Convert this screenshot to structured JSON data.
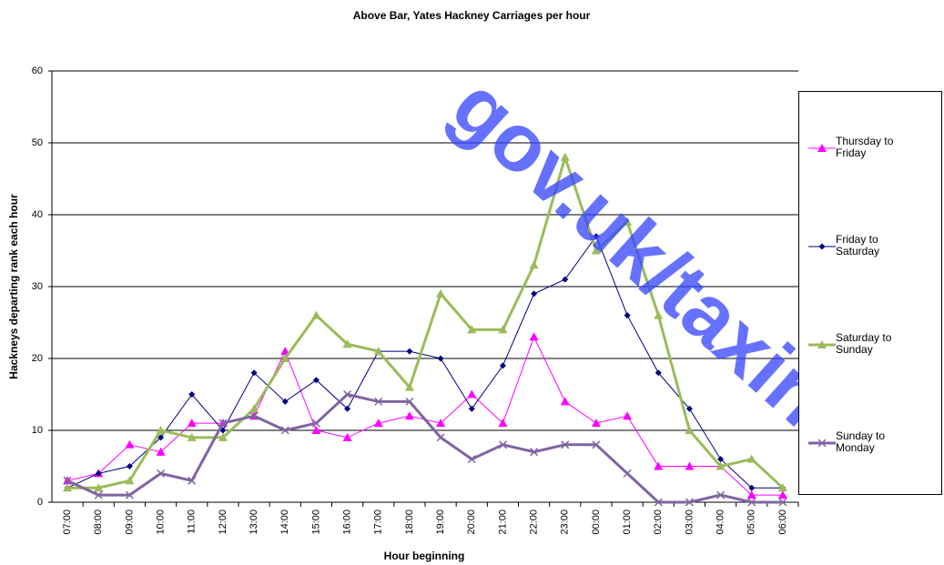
{
  "chart_data": {
    "type": "line",
    "title": "Above Bar, Yates Hackney Carriages per hour",
    "x_label": "Hour beginning",
    "y_label": "Hackneys departing rank each hour",
    "watermark": "gov.uk/taxino",
    "categories": [
      "07:00",
      "08:00",
      "09:00",
      "10:00",
      "11:00",
      "12:00",
      "13:00",
      "14:00",
      "15:00",
      "16:00",
      "17:00",
      "18:00",
      "19:00",
      "20:00",
      "21:00",
      "22:00",
      "23:00",
      "00:00",
      "01:00",
      "02:00",
      "03:00",
      "04:00",
      "05:00",
      "06:00"
    ],
    "ylim": [
      0,
      60
    ],
    "yticks": [
      0,
      10,
      20,
      30,
      40,
      50,
      60
    ],
    "grid": true,
    "series": [
      {
        "name": "Thursday to Friday",
        "color": "#ff00ff",
        "marker": "triangle",
        "width": 1,
        "values": [
          3,
          4,
          8,
          7,
          11,
          11,
          12,
          21,
          10,
          9,
          11,
          12,
          11,
          15,
          11,
          23,
          14,
          11,
          12,
          5,
          5,
          5,
          1,
          1
        ]
      },
      {
        "name": "Friday to Saturday",
        "color": "#000080",
        "marker": "diamond",
        "width": 1,
        "values": [
          2,
          4,
          5,
          9,
          15,
          10,
          18,
          14,
          17,
          13,
          21,
          21,
          20,
          13,
          19,
          29,
          31,
          37,
          26,
          18,
          13,
          6,
          2,
          2
        ]
      },
      {
        "name": "Saturday to Sunday",
        "color": "#9bbb59",
        "marker": "triangle",
        "width": 3,
        "values": [
          2,
          2,
          3,
          10,
          9,
          9,
          13,
          20,
          26,
          22,
          21,
          16,
          29,
          24,
          24,
          33,
          48,
          35,
          39,
          26,
          10,
          5,
          6,
          2
        ]
      },
      {
        "name": "Sunday to Monday",
        "color": "#8064a2",
        "marker": "x",
        "width": 3,
        "values": [
          3,
          1,
          1,
          4,
          3,
          11,
          12,
          10,
          11,
          15,
          14,
          14,
          9,
          6,
          8,
          7,
          8,
          8,
          4,
          0,
          0,
          1,
          0,
          0
        ]
      }
    ]
  }
}
